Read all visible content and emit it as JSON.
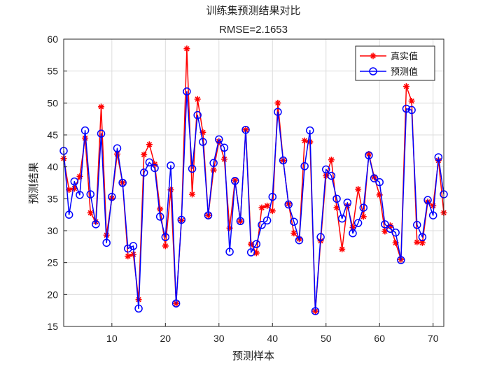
{
  "chart_data": {
    "type": "line",
    "title": "训练集预测结果对比",
    "subtitle": "RMSE=2.1653",
    "xlabel": "预测样本",
    "ylabel": "预测结果",
    "xlim": [
      1,
      72
    ],
    "ylim": [
      15,
      60
    ],
    "xticks": [
      10,
      20,
      30,
      40,
      50,
      60,
      70
    ],
    "yticks": [
      15,
      20,
      25,
      30,
      35,
      40,
      45,
      50,
      55,
      60
    ],
    "grid": true,
    "legend_position": "top-right",
    "series": [
      {
        "name": "真实值",
        "color": "#ff0000",
        "marker": "asterisk",
        "values": [
          41.3,
          36.4,
          36.6,
          38.5,
          44.5,
          32.8,
          31.4,
          49.4,
          29.3,
          35.1,
          42.0,
          37.5,
          26.0,
          26.3,
          19.2,
          41.9,
          43.5,
          40.4,
          33.4,
          27.6,
          36.4,
          18.6,
          31.6,
          58.5,
          35.7,
          50.6,
          45.4,
          32.4,
          39.5,
          44.0,
          41.2,
          30.4,
          37.9,
          31.5,
          45.8,
          27.9,
          26.5,
          33.6,
          33.9,
          33.1,
          50.0,
          41.0,
          34.2,
          29.6,
          28.7,
          44.1,
          43.9,
          17.4,
          28.4,
          38.6,
          41.1,
          33.6,
          27.1,
          33.9,
          30.5,
          36.5,
          32.2,
          42.0,
          38.4,
          35.6,
          29.9,
          30.8,
          28.1,
          25.5,
          52.6,
          50.3,
          28.2,
          28.1,
          34.5,
          33.9,
          41.0,
          32.8
        ]
      },
      {
        "name": "预测值",
        "color": "#0000ff",
        "marker": "circle",
        "values": [
          42.5,
          32.5,
          37.7,
          35.6,
          45.7,
          35.7,
          31.0,
          45.2,
          28.1,
          35.3,
          42.9,
          37.5,
          27.2,
          27.6,
          17.8,
          39.1,
          40.7,
          39.8,
          32.2,
          29.0,
          40.2,
          18.6,
          31.7,
          51.8,
          39.7,
          48.1,
          43.9,
          32.4,
          40.6,
          44.3,
          43.0,
          26.7,
          37.8,
          31.5,
          45.8,
          26.6,
          27.9,
          30.9,
          31.6,
          35.3,
          48.6,
          41.0,
          34.1,
          31.4,
          28.5,
          40.1,
          45.7,
          17.4,
          29.0,
          39.6,
          38.6,
          35.0,
          31.9,
          34.4,
          29.6,
          31.2,
          33.6,
          41.8,
          38.2,
          37.6,
          31.0,
          30.3,
          29.7,
          25.4,
          49.1,
          48.9,
          30.9,
          29.0,
          34.8,
          32.4,
          41.5,
          35.7
        ]
      }
    ]
  }
}
